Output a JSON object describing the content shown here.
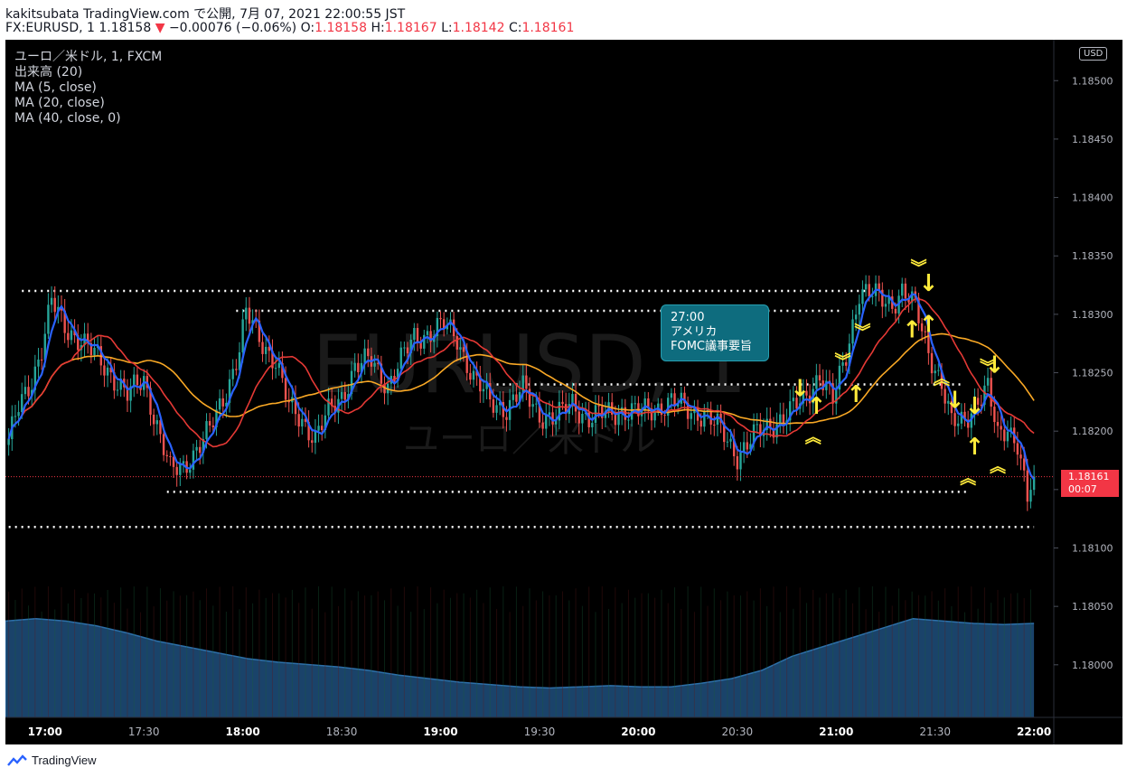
{
  "header": {
    "publisher_line": "kakitsubata TradingView.com で公開, 7月 07, 2021 22:00:55 JST",
    "symbol_line": "FX:EURUSD, 1  1.18158",
    "change": "−0.00076 (−0.06%)",
    "open_label": "O:",
    "open": "1.18158",
    "high_label": "H:",
    "high": "1.18167",
    "low_label": "L:",
    "low": "1.18142",
    "close_label": "C:",
    "close": "1.18161"
  },
  "legend": {
    "symbol": "ユーロ／米ドル, 1, FXCM",
    "volume": "出来高 (20)",
    "ma1": "MA (5, close)",
    "ma2": "MA (20, close)",
    "ma3": "MA (40, close, 0)"
  },
  "watermark": {
    "ticker": "EURUSD, 1",
    "name": "ユーロ／米ドル"
  },
  "currency_badge": "USD",
  "last_price": {
    "price": "1.18161",
    "countdown": "00:07"
  },
  "annotation": {
    "line1": "27:00",
    "line2": "アメリカ",
    "line3": "FOMC議事要旨"
  },
  "footer": {
    "brand": "TradingView"
  },
  "colors": {
    "background": "#000000",
    "up": "#26a69a",
    "down": "#ef5350",
    "ma5": "#2962ff",
    "ma20": "#e53935",
    "ma40": "#f9a825",
    "volume": "#1e4f7c",
    "marker": "#ffeb3b",
    "level": "#ffffff"
  },
  "chart_data": {
    "type": "candlestick",
    "symbol": "FX:EURUSD",
    "interval": "1",
    "y_range": [
      1.17955,
      1.18535
    ],
    "y_ticks": [
      "1.18500",
      "1.18450",
      "1.18400",
      "1.18350",
      "1.18300",
      "1.18250",
      "1.18200",
      "1.18150",
      "1.18100",
      "1.18050",
      "1.18000"
    ],
    "x_range": [
      "16:48",
      "22:06"
    ],
    "x_ticks": [
      {
        "t": "17:00",
        "hour": true
      },
      {
        "t": "17:30",
        "hour": false
      },
      {
        "t": "18:00",
        "hour": true
      },
      {
        "t": "18:30",
        "hour": false
      },
      {
        "t": "19:00",
        "hour": true
      },
      {
        "t": "19:30",
        "hour": false
      },
      {
        "t": "20:00",
        "hour": true
      },
      {
        "t": "20:30",
        "hour": false
      },
      {
        "t": "21:00",
        "hour": true
      },
      {
        "t": "21:30",
        "hour": false
      },
      {
        "t": "22:00",
        "hour": true
      }
    ],
    "close_path": [
      [
        "16:49",
        1.1819
      ],
      [
        "16:52",
        1.1822
      ],
      [
        "16:56",
        1.18245
      ],
      [
        "16:59",
        1.1827
      ],
      [
        "17:02",
        1.1831
      ],
      [
        "17:06",
        1.1829
      ],
      [
        "17:10",
        1.1828
      ],
      [
        "17:15",
        1.18265
      ],
      [
        "17:20",
        1.1825
      ],
      [
        "17:25",
        1.1823
      ],
      [
        "17:30",
        1.18245
      ],
      [
        "17:34",
        1.18205
      ],
      [
        "17:38",
        1.18165
      ],
      [
        "17:42",
        1.1817
      ],
      [
        "17:46",
        1.18185
      ],
      [
        "17:50",
        1.182
      ],
      [
        "17:55",
        1.18235
      ],
      [
        "17:59",
        1.1827
      ],
      [
        "18:01",
        1.183
      ],
      [
        "18:05",
        1.1828
      ],
      [
        "18:10",
        1.1826
      ],
      [
        "18:14",
        1.1822
      ],
      [
        "18:18",
        1.1821
      ],
      [
        "18:22",
        1.18195
      ],
      [
        "18:26",
        1.18215
      ],
      [
        "18:30",
        1.1823
      ],
      [
        "18:34",
        1.18255
      ],
      [
        "18:39",
        1.1826
      ],
      [
        "18:44",
        1.1824
      ],
      [
        "18:48",
        1.1826
      ],
      [
        "18:52",
        1.1828
      ],
      [
        "18:57",
        1.18285
      ],
      [
        "19:01",
        1.1829
      ],
      [
        "19:05",
        1.1828
      ],
      [
        "19:10",
        1.18245
      ],
      [
        "19:15",
        1.18225
      ],
      [
        "19:20",
        1.1822
      ],
      [
        "19:25",
        1.18235
      ],
      [
        "19:30",
        1.18215
      ],
      [
        "19:35",
        1.1821
      ],
      [
        "19:40",
        1.18225
      ],
      [
        "19:45",
        1.1821
      ],
      [
        "19:50",
        1.18215
      ],
      [
        "19:55",
        1.18218
      ],
      [
        "20:00",
        1.18215
      ],
      [
        "20:05",
        1.1822
      ],
      [
        "20:10",
        1.18225
      ],
      [
        "20:15",
        1.18218
      ],
      [
        "20:20",
        1.18215
      ],
      [
        "20:25",
        1.182
      ],
      [
        "20:30",
        1.1818
      ],
      [
        "20:35",
        1.18195
      ],
      [
        "20:40",
        1.18205
      ],
      [
        "20:45",
        1.18215
      ],
      [
        "20:50",
        1.18225
      ],
      [
        "20:55",
        1.1825
      ],
      [
        "20:59",
        1.18225
      ],
      [
        "21:03",
        1.18265
      ],
      [
        "21:07",
        1.1832
      ],
      [
        "21:12",
        1.18315
      ],
      [
        "21:17",
        1.1831
      ],
      [
        "21:20",
        1.1832
      ],
      [
        "21:24",
        1.18305
      ],
      [
        "21:28",
        1.1827
      ],
      [
        "21:32",
        1.1824
      ],
      [
        "21:35",
        1.18205
      ],
      [
        "21:39",
        1.1821
      ],
      [
        "21:42",
        1.18225
      ],
      [
        "21:46",
        1.18235
      ],
      [
        "21:49",
        1.18195
      ],
      [
        "21:52",
        1.18205
      ],
      [
        "21:55",
        1.1819
      ],
      [
        "21:58",
        1.1814
      ],
      [
        "22:00",
        1.18161
      ]
    ],
    "levels": [
      {
        "price": 1.1832,
        "from": "16:53",
        "to": "21:10"
      },
      {
        "price": 1.18303,
        "from": "17:58",
        "to": "21:02"
      },
      {
        "price": 1.1824,
        "from": "19:17",
        "to": "21:38"
      },
      {
        "price": 1.18148,
        "from": "17:37",
        "to": "21:40"
      },
      {
        "price": 1.18118,
        "from": "16:49",
        "to": "22:00"
      }
    ],
    "volume_profile": [
      0.82,
      0.84,
      0.82,
      0.78,
      0.72,
      0.65,
      0.6,
      0.55,
      0.5,
      0.47,
      0.45,
      0.43,
      0.4,
      0.36,
      0.33,
      0.3,
      0.28,
      0.26,
      0.25,
      0.26,
      0.27,
      0.26,
      0.26,
      0.29,
      0.33,
      0.4,
      0.52,
      0.6,
      0.68,
      0.76,
      0.84,
      0.82,
      0.8,
      0.79,
      0.8
    ],
    "markers": [
      {
        "time": "20:49",
        "price": 1.1823,
        "symbol": "↓"
      },
      {
        "time": "20:54",
        "price": 1.18215,
        "symbol": "↑"
      },
      {
        "time": "20:53",
        "price": 1.1819,
        "symbol": "︽"
      },
      {
        "time": "21:02",
        "price": 1.18255,
        "symbol": "︾"
      },
      {
        "time": "21:06",
        "price": 1.18225,
        "symbol": "↑"
      },
      {
        "time": "21:08",
        "price": 1.1828,
        "symbol": "︾"
      },
      {
        "time": "21:25",
        "price": 1.18335,
        "symbol": "︾"
      },
      {
        "time": "21:28",
        "price": 1.1832,
        "symbol": "↓"
      },
      {
        "time": "21:23",
        "price": 1.1828,
        "symbol": "↑"
      },
      {
        "time": "21:28",
        "price": 1.18285,
        "symbol": "↑"
      },
      {
        "time": "21:32",
        "price": 1.1824,
        "symbol": "︽"
      },
      {
        "time": "21:36",
        "price": 1.1822,
        "symbol": "↓"
      },
      {
        "time": "21:40",
        "price": 1.18155,
        "symbol": "︽"
      },
      {
        "time": "21:42",
        "price": 1.1818,
        "symbol": "↑"
      },
      {
        "time": "21:42",
        "price": 1.18215,
        "symbol": "↓"
      },
      {
        "time": "21:46",
        "price": 1.1825,
        "symbol": "︾"
      },
      {
        "time": "21:48",
        "price": 1.1825,
        "symbol": "↓"
      },
      {
        "time": "21:49",
        "price": 1.18165,
        "symbol": "︽"
      }
    ]
  }
}
